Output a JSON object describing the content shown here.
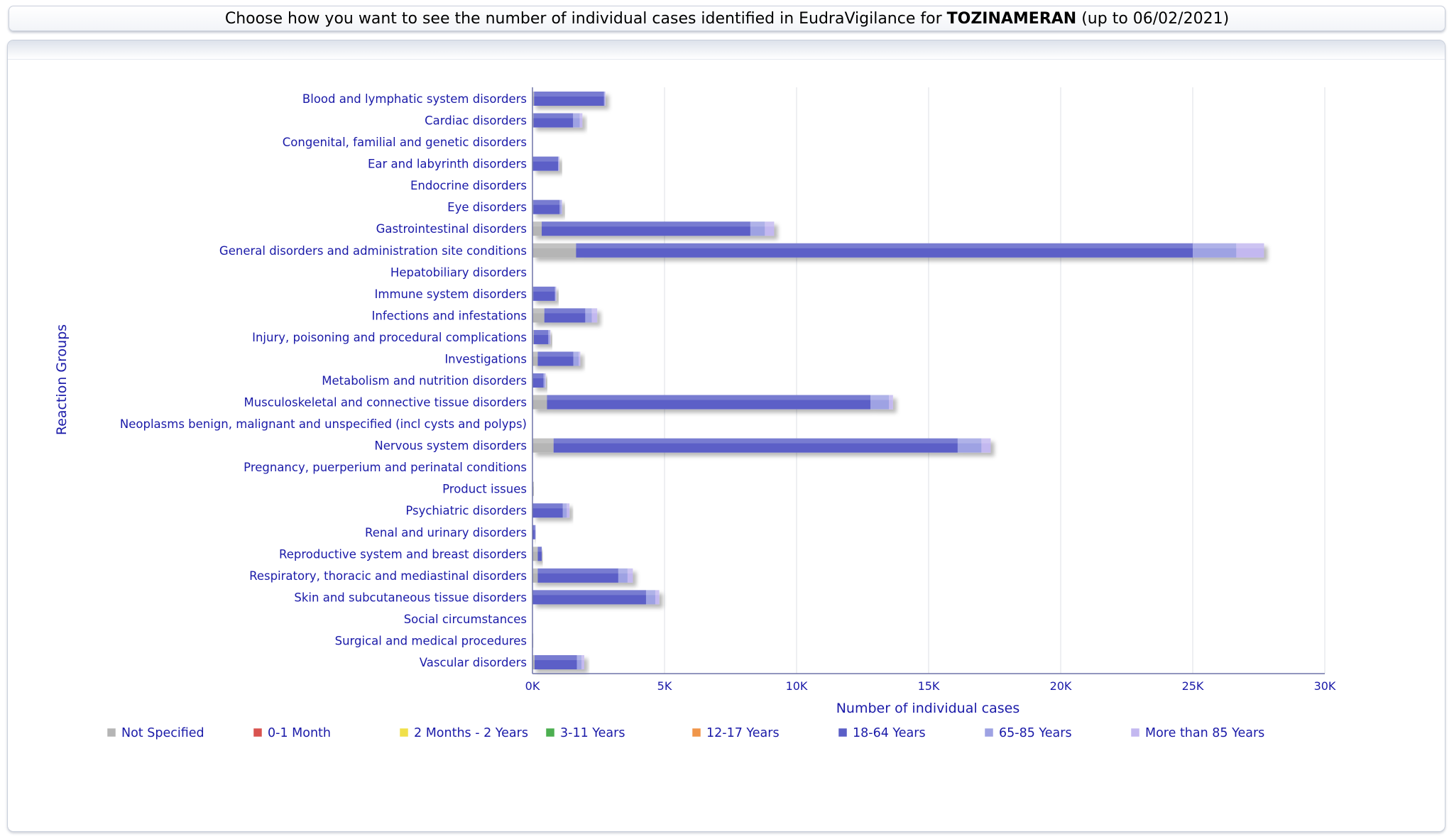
{
  "header": {
    "prefix": "Choose how you want to see the number of individual cases identified in EudraVigilance for ",
    "product": "TOZINAMERAN",
    "suffix": " (up to 06/02/2021)"
  },
  "chart_data": {
    "type": "bar",
    "orientation": "horizontal",
    "stacked": true,
    "xlabel": "Number of individual cases",
    "ylabel": "Reaction Groups",
    "xlim": [
      0,
      30000
    ],
    "xticks": [
      0,
      5000,
      10000,
      15000,
      20000,
      25000,
      30000
    ],
    "xtick_labels": [
      "0K",
      "5K",
      "10K",
      "15K",
      "20K",
      "25K",
      "30K"
    ],
    "grid": true,
    "legend_position": "bottom",
    "categories": [
      "Blood and lymphatic system disorders",
      "Cardiac disorders",
      "Congenital, familial and genetic disorders",
      "Ear and labyrinth disorders",
      "Endocrine disorders",
      "Eye disorders",
      "Gastrointestinal disorders",
      "General disorders and administration site conditions",
      "Hepatobiliary disorders",
      "Immune system disorders",
      "Infections and infestations",
      "Injury, poisoning and procedural complications",
      "Investigations",
      "Metabolism and nutrition disorders",
      "Musculoskeletal and connective tissue disorders",
      "Neoplasms benign, malignant and unspecified (incl cysts and polyps)",
      "Nervous system disorders",
      "Pregnancy, puerperium and perinatal conditions",
      "Product issues",
      "Psychiatric disorders",
      "Renal and urinary disorders",
      "Reproductive system and breast disorders",
      "Respiratory, thoracic and mediastinal disorders",
      "Skin and subcutaneous tissue disorders",
      "Social circumstances",
      "Surgical and medical procedures",
      "Vascular disorders"
    ],
    "series": [
      {
        "name": "Not Specified",
        "color": "#b5b5b5",
        "values": [
          60,
          40,
          0,
          20,
          0,
          30,
          350,
          1650,
          0,
          30,
          450,
          50,
          200,
          20,
          550,
          0,
          800,
          0,
          50,
          0,
          0,
          200,
          200,
          0,
          0,
          30,
          80
        ]
      },
      {
        "name": "0-1 Month",
        "color": "#d9534f",
        "values": [
          0,
          0,
          0,
          0,
          0,
          0,
          0,
          0,
          0,
          0,
          0,
          0,
          0,
          0,
          0,
          0,
          0,
          0,
          0,
          0,
          0,
          0,
          0,
          0,
          0,
          0,
          0
        ]
      },
      {
        "name": "2 Months - 2 Years",
        "color": "#f0e04a",
        "values": [
          0,
          0,
          0,
          0,
          0,
          0,
          0,
          0,
          0,
          0,
          0,
          0,
          0,
          0,
          0,
          0,
          0,
          0,
          0,
          0,
          0,
          0,
          0,
          0,
          0,
          0,
          0
        ]
      },
      {
        "name": "3-11 Years",
        "color": "#4caf50",
        "values": [
          0,
          0,
          0,
          0,
          0,
          0,
          0,
          0,
          0,
          0,
          0,
          0,
          0,
          0,
          0,
          0,
          0,
          0,
          0,
          0,
          0,
          0,
          0,
          0,
          0,
          0,
          0
        ]
      },
      {
        "name": "12-17 Years",
        "color": "#f0964a",
        "values": [
          0,
          0,
          0,
          0,
          0,
          0,
          0,
          0,
          0,
          0,
          0,
          0,
          0,
          0,
          0,
          0,
          0,
          0,
          0,
          0,
          0,
          0,
          0,
          0,
          0,
          0,
          0
        ]
      },
      {
        "name": "18-64 Years",
        "color": "#5b5fc7",
        "values": [
          2650,
          1500,
          0,
          950,
          0,
          1000,
          7900,
          23350,
          0,
          820,
          1550,
          550,
          1350,
          400,
          12250,
          0,
          15300,
          0,
          0,
          1150,
          100,
          150,
          3050,
          4300,
          0,
          0,
          1600
        ]
      },
      {
        "name": "65-85 Years",
        "color": "#9ea2e3",
        "values": [
          30,
          250,
          0,
          30,
          0,
          70,
          550,
          1650,
          0,
          30,
          250,
          60,
          200,
          60,
          700,
          0,
          900,
          0,
          0,
          150,
          10,
          0,
          350,
          350,
          0,
          0,
          180
        ]
      },
      {
        "name": "More than 85 Years",
        "color": "#c3b8f0",
        "values": [
          10,
          100,
          0,
          10,
          0,
          20,
          350,
          1050,
          0,
          10,
          200,
          20,
          60,
          20,
          150,
          0,
          350,
          0,
          0,
          100,
          0,
          0,
          200,
          150,
          0,
          0,
          100
        ]
      }
    ]
  }
}
